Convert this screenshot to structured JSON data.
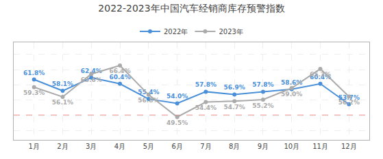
{
  "chart_data": {
    "type": "line",
    "title": "2022-2023年中国汽车经销商库存预警指数",
    "categories": [
      "1月",
      "2月",
      "3月",
      "4月",
      "5月",
      "6月",
      "7月",
      "8月",
      "9月",
      "10月",
      "11月",
      "12月"
    ],
    "series": [
      {
        "name": "2022年",
        "color": "#4a90d9",
        "marker": "circle",
        "line_style": "solid",
        "values": [
          61.8,
          58.1,
          62.4,
          60.4,
          55.4,
          54.0,
          57.8,
          56.9,
          57.8,
          58.6,
          60.4,
          53.7
        ],
        "value_labels": [
          "61.8%",
          "58.1%",
          "62.4%",
          "60.4%",
          "55.4%",
          "54.0%",
          "57.8%",
          "56.9%",
          "57.8%",
          "58.6%",
          "60.4%",
          "53.7%"
        ]
      },
      {
        "name": "2023年",
        "color": "#aaaaaa",
        "marker": "circle",
        "line_style": "solid",
        "values": [
          59.3,
          56.1,
          63.6,
          66.4,
          56.8,
          49.5,
          54.4,
          54.7,
          55.2,
          59.0,
          65.3,
          56.2
        ],
        "value_labels": [
          "59.3%",
          "56.1%",
          "63.6%",
          "66.4%",
          "56.8%",
          "49.5%",
          "54.4%",
          "54.7%",
          "55.2%",
          "59.0%",
          "65.3%",
          "56.2%"
        ]
      }
    ],
    "hlines": [
      {
        "value": 50.0,
        "color": "#e53935",
        "line_style": "dashed"
      }
    ],
    "ylim": [
      42,
      74
    ],
    "yticks": [
      45,
      50,
      55,
      60,
      65,
      70
    ],
    "tick_labels": "x",
    "grid": true,
    "legend": "top",
    "data_labels": true
  }
}
